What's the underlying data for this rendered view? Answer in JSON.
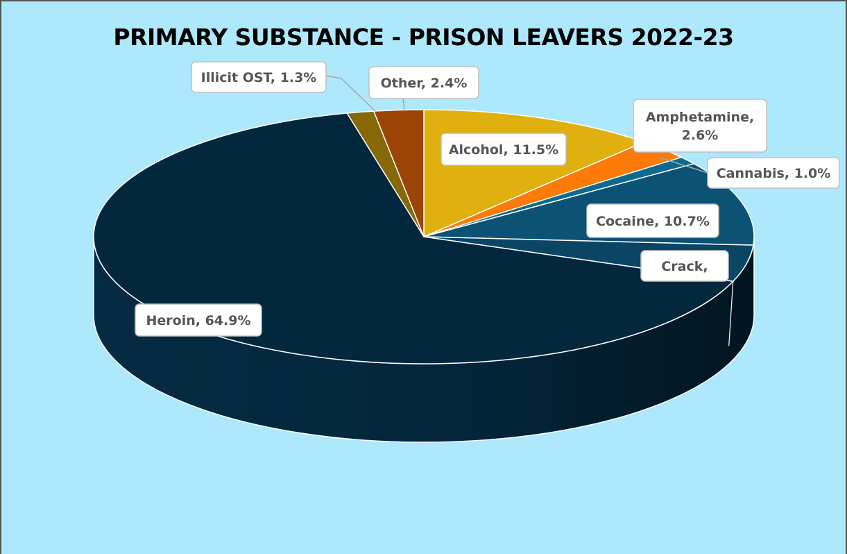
{
  "chart_data": {
    "type": "pie",
    "title": "PRIMARY SUBSTANCE - PRISON LEAVERS 2022-23",
    "slices": [
      {
        "name": "Alcohol",
        "value": 11.5,
        "label": [
          "Alcohol, 11.5%"
        ],
        "color": "#dfb00e"
      },
      {
        "name": "Amphetamine",
        "value": 2.6,
        "label": [
          "Amphetamine,",
          "2.6%"
        ],
        "color": "#fb7a08"
      },
      {
        "name": "Cannabis",
        "value": 1.0,
        "label": [
          "Cannabis, 1.0%"
        ],
        "color": "#0d6a8f"
      },
      {
        "name": "Cocaine",
        "value": 10.7,
        "label": [
          "Cocaine, 10.7%"
        ],
        "color": "#0b5275"
      },
      {
        "name": "Crack",
        "value": 4.6,
        "label": [
          "Crack,"
        ],
        "color": "#0b4566"
      },
      {
        "name": "Heroin",
        "value": 64.9,
        "label": [
          "Heroin, 64.9%"
        ],
        "color": "#03273d"
      },
      {
        "name": "Illicit OST",
        "value": 1.3,
        "label": [
          "Illicit OST, 1.3%"
        ],
        "color": "#866808"
      },
      {
        "name": "Other",
        "value": 2.4,
        "label": [
          "Other, 2.4%"
        ],
        "color": "#9c4406"
      }
    ]
  }
}
